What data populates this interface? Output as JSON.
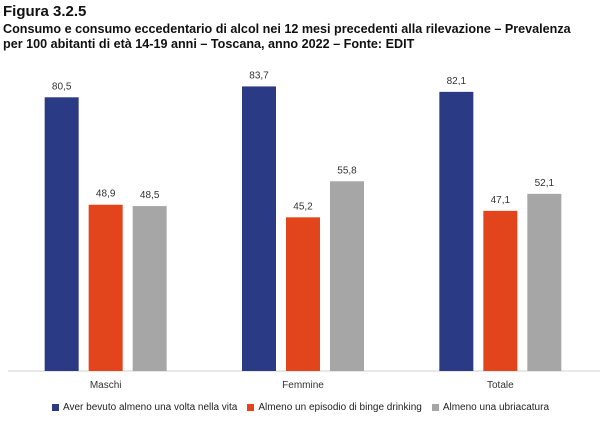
{
  "figure": {
    "label": "Figura 3.2.5",
    "title_line1": "Consumo e consumo eccedentario di alcol nei 12 mesi precedenti alla rilevazione  – Prevalenza",
    "title_line2": "per 100 abitanti di età 14-19 anni – Toscana, anno 2022 – Fonte: EDIT"
  },
  "chart_data": {
    "type": "bar",
    "categories": [
      "Maschi",
      "Femmine",
      "Totale"
    ],
    "series": [
      {
        "name": "Aver bevuto almeno una volta nella vita",
        "color": "#2b3a85",
        "values": [
          80.5,
          83.7,
          82.1
        ],
        "labels": [
          "80,5",
          "83,7",
          "82,1"
        ]
      },
      {
        "name": "Almeno un episodio di binge drinking",
        "color": "#e2441c",
        "values": [
          48.9,
          45.2,
          47.1
        ],
        "labels": [
          "48,9",
          "45,2",
          "47,1"
        ]
      },
      {
        "name": "Almeno una ubriacatura",
        "color": "#a6a6a6",
        "values": [
          48.5,
          55.8,
          52.1
        ],
        "labels": [
          "48,5",
          "55,8",
          "52,1"
        ]
      }
    ],
    "ylim": [
      0,
      90
    ],
    "grid": false,
    "legend_position": "bottom",
    "xlabel": "",
    "ylabel": ""
  }
}
